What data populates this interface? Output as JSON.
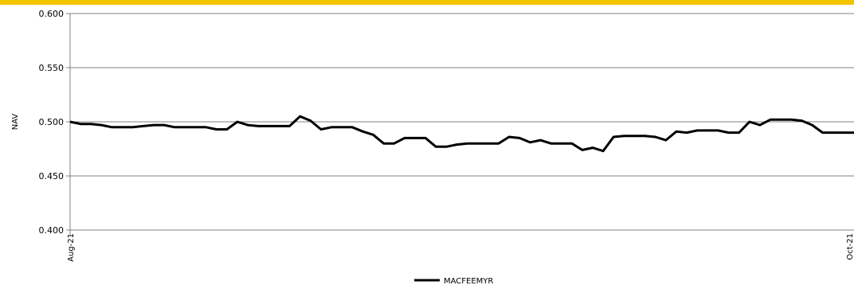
{
  "chart_data": {
    "type": "line",
    "ylabel": "NAV",
    "ylim": [
      0.4,
      0.6
    ],
    "yticks": [
      "0.600",
      "0.550",
      "0.500",
      "0.450",
      "0.400"
    ],
    "ytick_values": [
      0.6,
      0.55,
      0.5,
      0.45,
      0.4
    ],
    "xtick_labels": [
      "Aug-21",
      "Oct-21"
    ],
    "grid": true,
    "legend_position": "bottom",
    "colors": {
      "line": "#000000",
      "grid": "#808080",
      "accent_bar": "#f5c400"
    },
    "series": [
      {
        "name": "MACFEEMYR",
        "values": [
          0.5,
          0.498,
          0.498,
          0.497,
          0.495,
          0.495,
          0.495,
          0.496,
          0.497,
          0.497,
          0.495,
          0.495,
          0.495,
          0.495,
          0.493,
          0.493,
          0.5,
          0.497,
          0.496,
          0.496,
          0.496,
          0.496,
          0.505,
          0.501,
          0.493,
          0.495,
          0.495,
          0.495,
          0.491,
          0.488,
          0.48,
          0.48,
          0.485,
          0.485,
          0.485,
          0.477,
          0.477,
          0.479,
          0.48,
          0.48,
          0.48,
          0.48,
          0.486,
          0.485,
          0.481,
          0.483,
          0.48,
          0.48,
          0.48,
          0.474,
          0.476,
          0.473,
          0.486,
          0.487,
          0.487,
          0.487,
          0.486,
          0.483,
          0.491,
          0.49,
          0.492,
          0.492,
          0.492,
          0.49,
          0.49,
          0.5,
          0.497,
          0.502,
          0.502,
          0.502,
          0.501,
          0.497,
          0.49,
          0.49,
          0.49,
          0.49
        ]
      }
    ]
  }
}
